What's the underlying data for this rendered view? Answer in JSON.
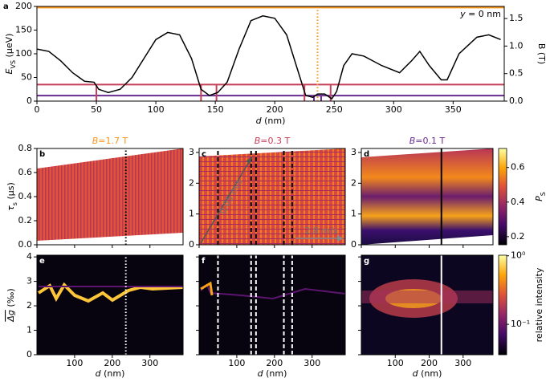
{
  "chart_data": [
    {
      "type": "line",
      "panel_label": "a",
      "annotation": {
        "base": "y",
        "rest": " = 0 nm"
      },
      "x": [
        0,
        10,
        20,
        30,
        40,
        48,
        52,
        60,
        70,
        80,
        90,
        100,
        110,
        120,
        130,
        138,
        145,
        152,
        160,
        170,
        180,
        190,
        200,
        210,
        220,
        226,
        232,
        236,
        242,
        248,
        252,
        258,
        265,
        275,
        290,
        305,
        315,
        322,
        330,
        340,
        345,
        355,
        370,
        380,
        390
      ],
      "series": [
        {
          "color": "#000000",
          "values": [
            110,
            105,
            85,
            60,
            42,
            40,
            25,
            18,
            25,
            50,
            90,
            130,
            145,
            140,
            90,
            25,
            12,
            18,
            40,
            110,
            170,
            180,
            175,
            140,
            60,
            12,
            8,
            15,
            15,
            5,
            20,
            75,
            100,
            95,
            75,
            60,
            85,
            105,
            75,
            45,
            45,
            100,
            135,
            140,
            130
          ]
        }
      ],
      "xlim": [
        0,
        393
      ],
      "xticks": [
        0,
        50,
        100,
        150,
        200,
        250,
        300,
        350
      ],
      "ylim": [
        0,
        200
      ],
      "yticks": [
        0,
        50,
        100,
        150,
        200
      ],
      "y2lim": [
        0,
        1.72
      ],
      "y2ticks": [
        {
          "value": 0,
          "label": "0.0"
        },
        {
          "value": 0.5,
          "label": "0.5"
        },
        {
          "value": 1,
          "label": "1.0"
        },
        {
          "value": 1.5,
          "label": "1.5"
        }
      ],
      "xlabel": {
        "base": "d",
        "rest": " (nm)"
      },
      "ylabel": {
        "base": "E",
        "sub": "VS",
        "rest": " (µeV)"
      },
      "y2label": "B (T)",
      "hlines": [
        {
          "value": 1.7,
          "color": "#f7941d"
        },
        {
          "value": 0.3,
          "color": "#c7405a"
        },
        {
          "value": 0.1,
          "color": "#6a2c91"
        }
      ],
      "vlines": [
        {
          "value": 50,
          "top": 0.3,
          "color": "#c7405a",
          "style": "solid"
        },
        {
          "value": 138,
          "top": 0.3,
          "color": "#c7405a",
          "style": "solid"
        },
        {
          "value": 151,
          "top": 0.3,
          "color": "#c7405a",
          "style": "solid"
        },
        {
          "value": 225,
          "top": 0.3,
          "color": "#c7405a",
          "style": "solid"
        },
        {
          "value": 247,
          "top": 0.3,
          "color": "#c7405a",
          "style": "solid"
        },
        {
          "value": 233,
          "top": 0.1,
          "color": "#6a2c91",
          "style": "solid"
        },
        {
          "value": 239,
          "top": 0.1,
          "color": "#6a2c91",
          "style": "solid"
        },
        {
          "value": 236,
          "color": "#f7941d",
          "style": "dotted"
        }
      ]
    },
    {
      "type": "heatmap",
      "panel_label": "b",
      "title": {
        "base": "B",
        "rest": "=1.7 T"
      },
      "title_color": "#f7941d",
      "xlim": [
        0,
        388
      ],
      "xticks": [
        0,
        100,
        200,
        300
      ],
      "ylim": [
        0,
        0.8
      ],
      "yticks": [
        {
          "value": 0,
          "label": "0.0"
        },
        {
          "value": 0.2,
          "label": "0.2"
        },
        {
          "value": 0.4,
          "label": "0.4"
        },
        {
          "value": 0.6,
          "label": "0.6"
        },
        {
          "value": 0.8,
          "label": "0.8"
        }
      ],
      "ylabel": {
        "base": "τ",
        "sub": "s",
        "rest": " (µs)"
      },
      "vlines": [
        {
          "value": 236,
          "color": "#000000",
          "style": "dotted"
        }
      ]
    },
    {
      "type": "heatmap",
      "panel_label": "c",
      "title": {
        "base": "B",
        "rest": "=0.3 T"
      },
      "title_color": "#c7405a",
      "xlim": [
        0,
        388
      ],
      "xticks": [
        0,
        100,
        200,
        300
      ],
      "ylim": [
        0,
        3.13
      ],
      "yticks": [
        0,
        1,
        2,
        3
      ],
      "annotations": [
        "0.05 m/s",
        "2.8 m/s"
      ],
      "vlines": [
        {
          "value": 50,
          "color": "#000000",
          "style": "dashed"
        },
        {
          "value": 138,
          "color": "#000000",
          "style": "dashed"
        },
        {
          "value": 151,
          "color": "#000000",
          "style": "dashed"
        },
        {
          "value": 225,
          "color": "#000000",
          "style": "dashed"
        },
        {
          "value": 247,
          "color": "#000000",
          "style": "dashed"
        }
      ]
    },
    {
      "type": "heatmap",
      "panel_label": "d",
      "title": {
        "base": "B",
        "rest": "=0.1 T"
      },
      "title_color": "#6a2c91",
      "xlim": [
        0,
        388
      ],
      "xticks": [
        0,
        100,
        200,
        300
      ],
      "ylim": [
        0,
        3.13
      ],
      "yticks": [
        0,
        1,
        2,
        3
      ],
      "vlines": [
        {
          "value": 236,
          "color": "#000000",
          "style": "solid"
        }
      ],
      "colorbar": {
        "label": {
          "base": "P",
          "sub": "S"
        },
        "lim": [
          0.153,
          0.71
        ],
        "ticks": [
          0.2,
          0.4,
          0.6
        ]
      }
    },
    {
      "type": "heatmap",
      "panel_label": "e",
      "xlim": [
        0,
        388
      ],
      "xticks": [
        100,
        200,
        300
      ],
      "ylim": [
        0,
        4.07
      ],
      "yticks": [
        0,
        1,
        2,
        3,
        4
      ],
      "xlabel": {
        "base": "d",
        "rest": " (nm)"
      },
      "ylabel": {
        "base": "Δg",
        "rest": " (‰)",
        "overline": true
      },
      "vlines": [
        {
          "value": 236,
          "color": "#ffffff",
          "style": "dotted"
        }
      ]
    },
    {
      "type": "heatmap",
      "panel_label": "f",
      "xlim": [
        0,
        388
      ],
      "xticks": [
        100,
        200,
        300
      ],
      "ylim": [
        0,
        4.07
      ],
      "yticks": [
        0,
        1,
        2,
        3,
        4
      ],
      "xlabel": {
        "base": "d",
        "rest": " (nm)"
      },
      "vlines": [
        {
          "value": 50,
          "color": "#ffffff",
          "style": "dashed"
        },
        {
          "value": 138,
          "color": "#ffffff",
          "style": "dashed"
        },
        {
          "value": 151,
          "color": "#ffffff",
          "style": "dashed"
        },
        {
          "value": 225,
          "color": "#ffffff",
          "style": "dashed"
        },
        {
          "value": 247,
          "color": "#ffffff",
          "style": "dashed"
        }
      ]
    },
    {
      "type": "heatmap",
      "panel_label": "g",
      "xlim": [
        0,
        388
      ],
      "xticks": [
        100,
        200,
        300
      ],
      "ylim": [
        0,
        4.07
      ],
      "yticks": [
        0,
        1,
        2,
        3,
        4
      ],
      "xlabel": {
        "base": "d",
        "rest": " (nm)"
      },
      "vlines": [
        {
          "value": 236,
          "color": "#ffffff",
          "style": "solid"
        }
      ],
      "colorbar": {
        "label": "relative intensity",
        "scale": "log",
        "lim": [
          0.036,
          1.02
        ],
        "ticks": [
          {
            "value": 0.1,
            "label": "10⁻¹"
          },
          {
            "value": 1,
            "label": "10⁰"
          }
        ]
      }
    }
  ]
}
